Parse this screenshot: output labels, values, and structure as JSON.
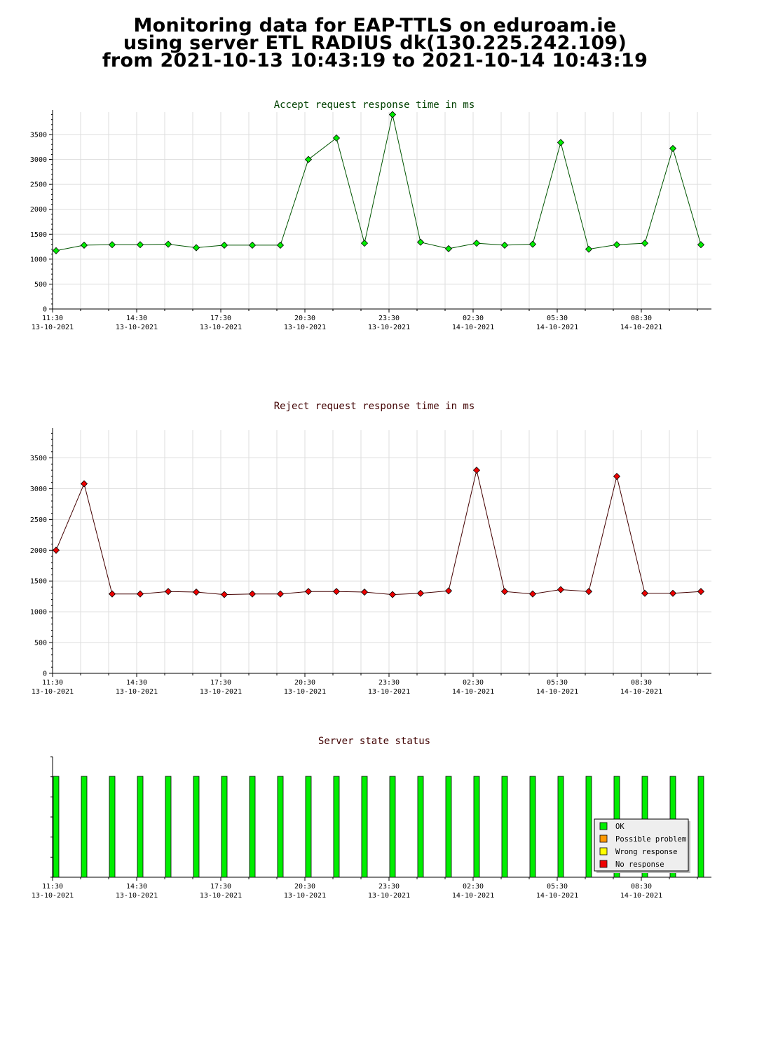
{
  "title": {
    "line1": "Monitoring data for EAP-TTLS on eduroam.ie",
    "line2": "using server ETL RADIUS dk(130.225.242.109)",
    "line3": "from 2021-10-13 10:43:19 to 2021-10-14 10:43:19"
  },
  "colors": {
    "accept_marker": "#00ee00",
    "accept_line": "#005500",
    "accept_title": "#004000",
    "reject_marker": "#ee0000",
    "reject_line": "#440000",
    "reject_title": "#400000",
    "status_title": "#400000",
    "grid": "#dddddd"
  },
  "x_tick_labels": [
    {
      "time": "11:30",
      "date": "13-10-2021"
    },
    {
      "time": "14:30",
      "date": "13-10-2021"
    },
    {
      "time": "17:30",
      "date": "13-10-2021"
    },
    {
      "time": "20:30",
      "date": "13-10-2021"
    },
    {
      "time": "23:30",
      "date": "13-10-2021"
    },
    {
      "time": "02:30",
      "date": "14-10-2021"
    },
    {
      "time": "05:30",
      "date": "14-10-2021"
    },
    {
      "time": "08:30",
      "date": "14-10-2021"
    }
  ],
  "chart_data": [
    {
      "type": "line",
      "title": "Accept request response time in ms",
      "ylim": [
        0,
        3950
      ],
      "y_ticks": [
        0,
        500,
        1000,
        1500,
        2000,
        2500,
        3000,
        3500
      ],
      "grid": true,
      "x": [
        "11:30",
        "12:30",
        "13:30",
        "14:30",
        "15:30",
        "16:30",
        "17:30",
        "18:30",
        "19:30",
        "20:30",
        "21:30",
        "22:30",
        "23:30",
        "00:30",
        "01:30",
        "02:30",
        "03:30",
        "04:30",
        "05:30",
        "06:30",
        "07:30",
        "08:30",
        "09:30",
        "10:30"
      ],
      "values": [
        1170,
        1280,
        1290,
        1290,
        1300,
        1230,
        1280,
        1280,
        1280,
        3000,
        3430,
        1320,
        3900,
        1340,
        1210,
        1320,
        1280,
        1300,
        3340,
        1200,
        1290,
        1320,
        3220,
        1290
      ]
    },
    {
      "type": "line",
      "title": "Reject request response time in ms",
      "ylim": [
        0,
        3950
      ],
      "y_ticks": [
        0,
        500,
        1000,
        1500,
        2000,
        2500,
        3000,
        3500
      ],
      "grid": true,
      "x": [
        "11:30",
        "12:30",
        "13:30",
        "14:30",
        "15:30",
        "16:30",
        "17:30",
        "18:30",
        "19:30",
        "20:30",
        "21:30",
        "22:30",
        "23:30",
        "00:30",
        "01:30",
        "02:30",
        "03:30",
        "04:30",
        "05:30",
        "06:30",
        "07:30",
        "08:30",
        "09:30",
        "10:30"
      ],
      "values": [
        2000,
        3080,
        1290,
        1290,
        1330,
        1320,
        1280,
        1290,
        1290,
        1330,
        1330,
        1320,
        1280,
        1300,
        1340,
        3300,
        1330,
        1290,
        1360,
        1330,
        3200,
        1300,
        1300,
        1330
      ]
    },
    {
      "type": "bar",
      "title": "Server state status",
      "grid": false,
      "x": [
        "11:30",
        "12:30",
        "13:30",
        "14:30",
        "15:30",
        "16:30",
        "17:30",
        "18:30",
        "19:30",
        "20:30",
        "21:30",
        "22:30",
        "23:30",
        "00:30",
        "01:30",
        "02:30",
        "03:30",
        "04:30",
        "05:30",
        "06:30",
        "07:30",
        "08:30",
        "09:30",
        "10:30"
      ],
      "states": [
        "OK",
        "OK",
        "OK",
        "OK",
        "OK",
        "OK",
        "OK",
        "OK",
        "OK",
        "OK",
        "OK",
        "OK",
        "OK",
        "OK",
        "OK",
        "OK",
        "OK",
        "OK",
        "OK",
        "OK",
        "OK",
        "OK",
        "OK",
        "OK"
      ],
      "legend_position": "bottom-right",
      "legend": [
        {
          "label": "OK",
          "color": "#00ee00"
        },
        {
          "label": "Possible problem",
          "color": "#ff9900"
        },
        {
          "label": "Wrong response",
          "color": "#ffff00"
        },
        {
          "label": "No response",
          "color": "#ee0000"
        }
      ]
    }
  ]
}
